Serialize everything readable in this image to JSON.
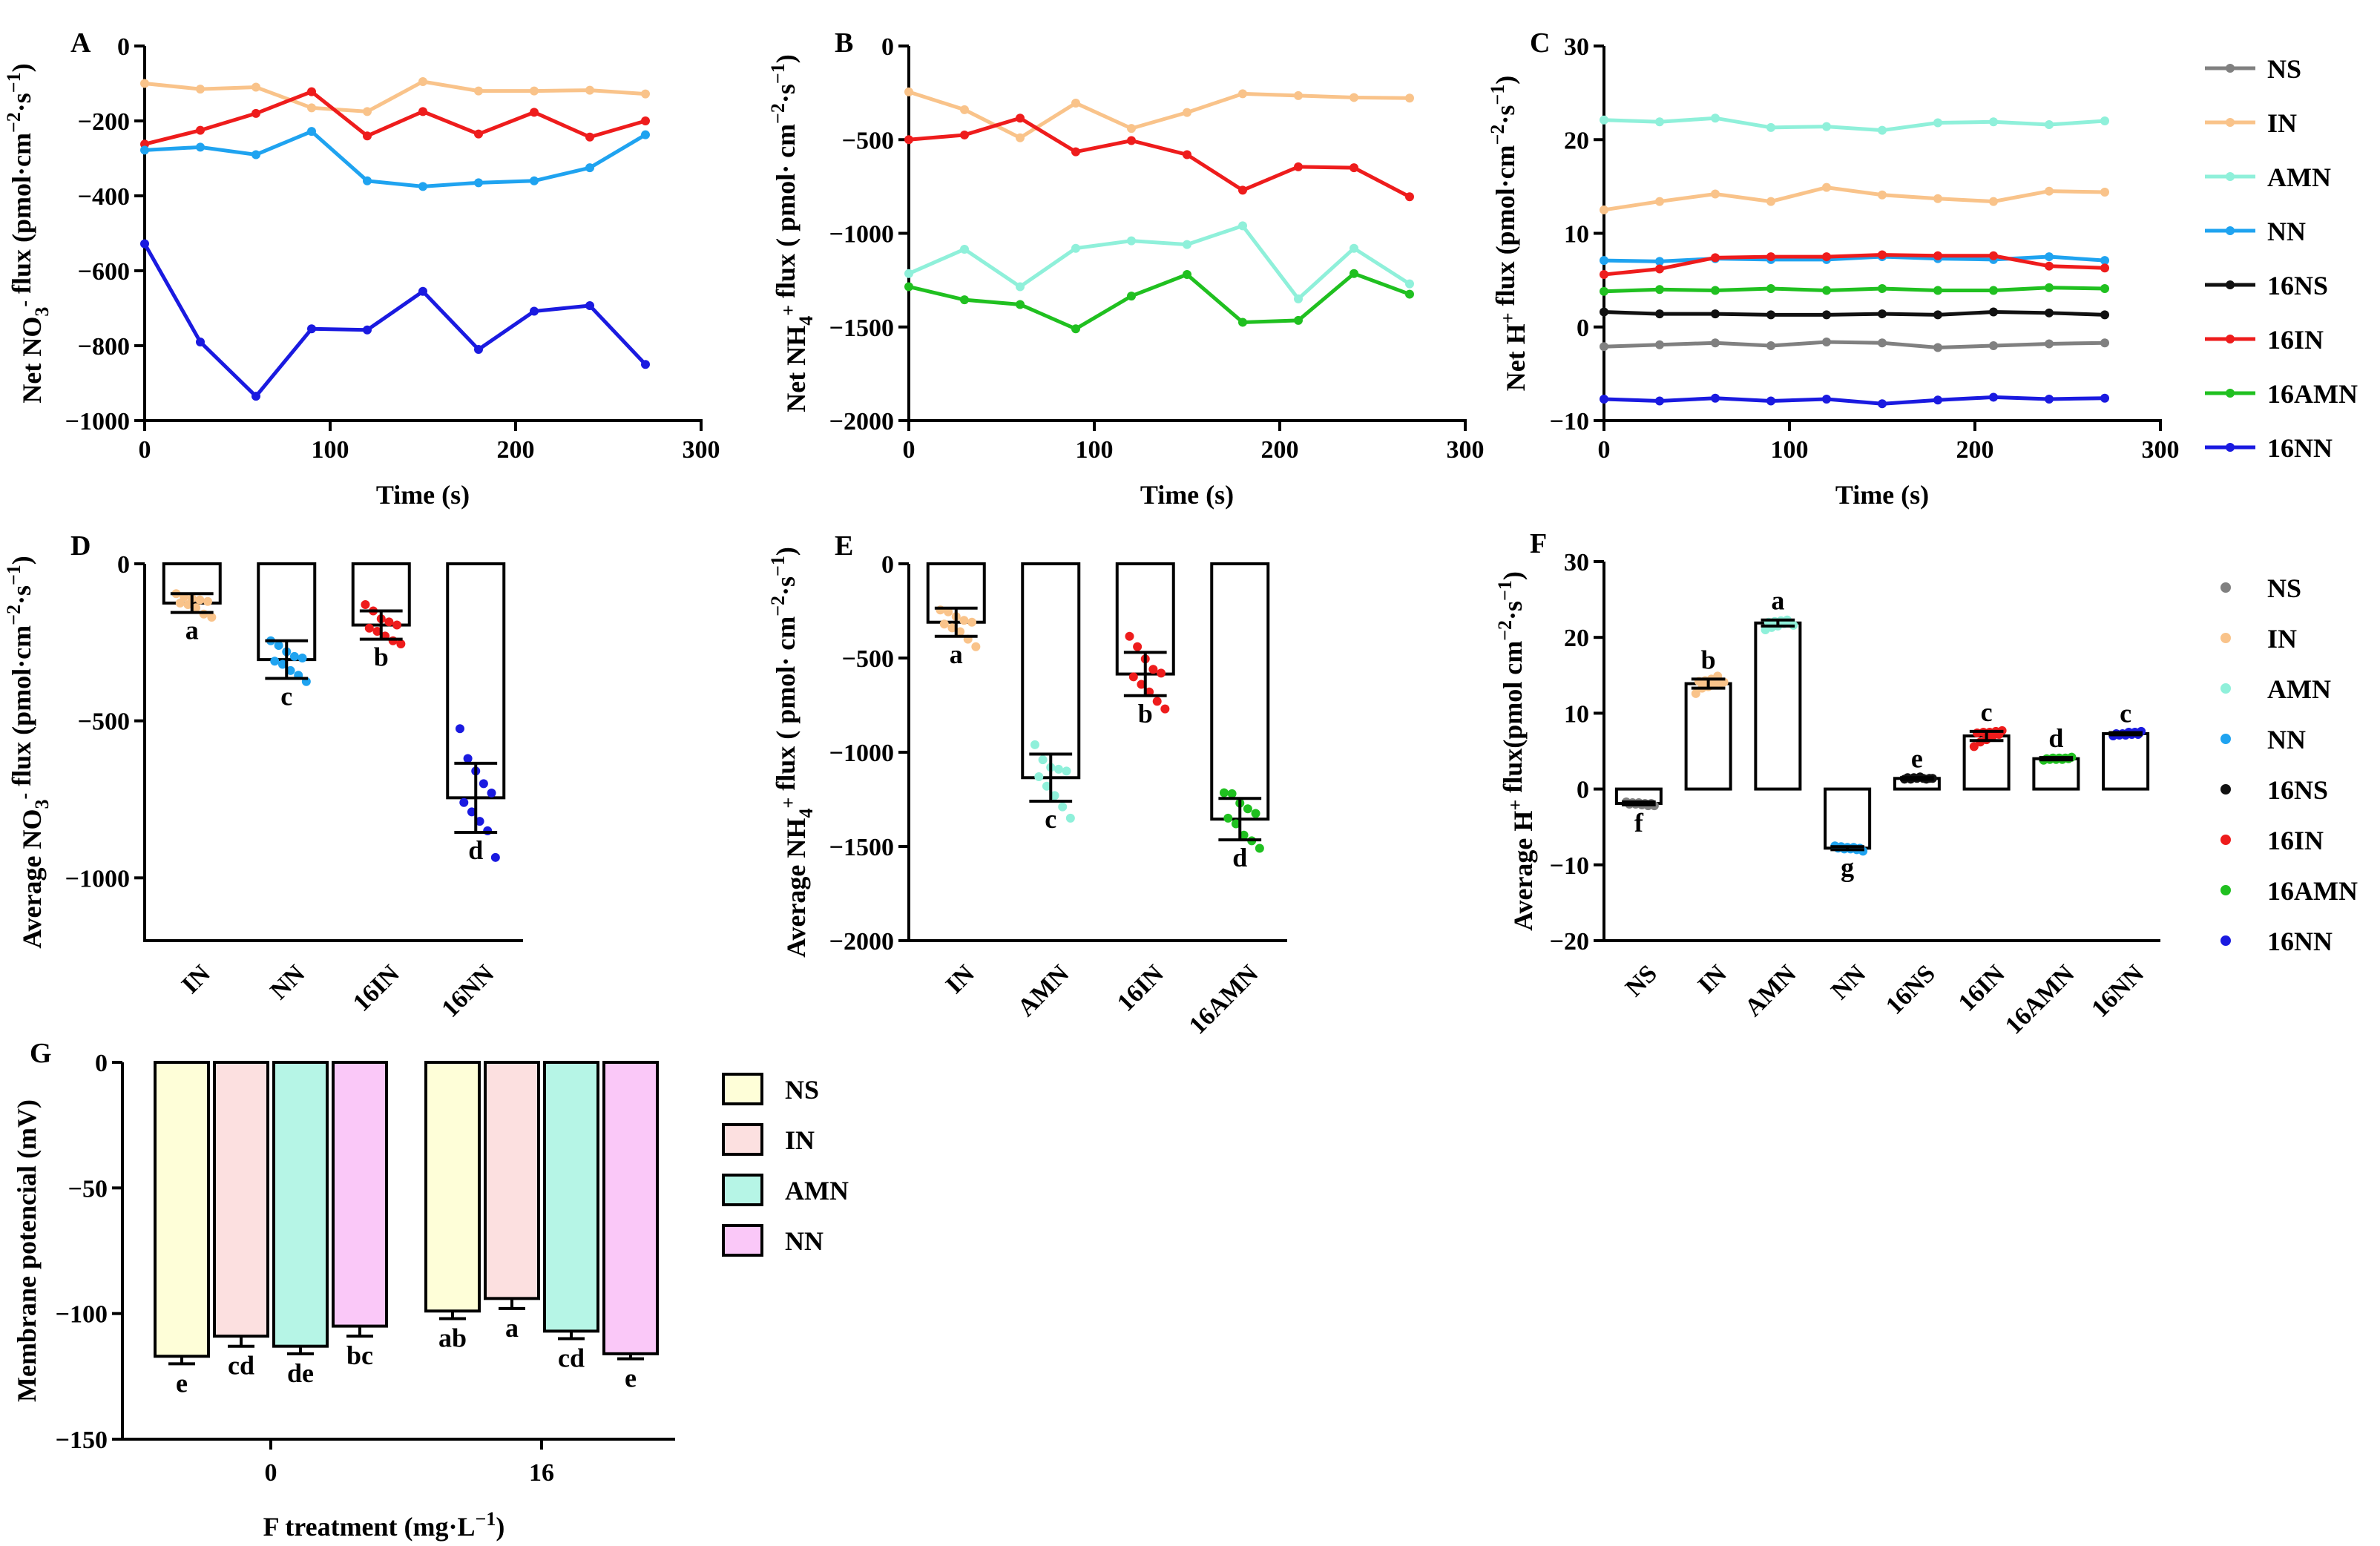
{
  "colors": {
    "NS": "#808080",
    "IN": "#F9C38A",
    "AMN": "#8FF0DA",
    "NN": "#1FA3F0",
    "16NS": "#111111",
    "16IN": "#EE1C1C",
    "16AMN": "#20C020",
    "16NN": "#1A1AE0",
    "G_NS": "#FEFED8",
    "G_IN": "#FCE0E0",
    "G_AMN": "#B6F5E6",
    "G_NN": "#FAC8F8"
  },
  "chart_data": [
    {
      "id": "A",
      "label": "A",
      "type": "line",
      "ylabel": "Net NO3- flux (pmol·cm−2·s−1)",
      "ylabel_parts": {
        "pre": "Net NO",
        "sub": "3",
        "sup1": "-",
        "mid": " flux (pmol·cm",
        "sup2": "−2",
        "mid2": "·s",
        "sup3": "−1",
        "post": ")"
      },
      "xlabel": "Time (s)",
      "xlim": [
        0,
        300
      ],
      "ylim": [
        -1000,
        0
      ],
      "xticks": [
        "0",
        "100",
        "200",
        "300"
      ],
      "yticks": [
        "0",
        "−200",
        "−400",
        "−600",
        "−800",
        "−1000"
      ],
      "x": [
        0,
        30,
        60,
        90,
        120,
        150,
        180,
        210,
        240,
        270
      ],
      "series": [
        {
          "name": "IN",
          "values": [
            -100,
            -115,
            -110,
            -165,
            -175,
            -95,
            -120,
            -120,
            -118,
            -128
          ]
        },
        {
          "name": "16IN",
          "values": [
            -262,
            -225,
            -180,
            -122,
            -240,
            -175,
            -235,
            -177,
            -243,
            -200
          ]
        },
        {
          "name": "NN",
          "values": [
            -278,
            -270,
            -290,
            -228,
            -360,
            -375,
            -365,
            -360,
            -325,
            -237
          ]
        },
        {
          "name": "16NN",
          "values": [
            -528,
            -790,
            -935,
            -755,
            -758,
            -655,
            -810,
            -708,
            -693,
            -850
          ]
        }
      ]
    },
    {
      "id": "B",
      "label": "B",
      "type": "line",
      "ylabel": "Net NH4+ flux ( pmol· cm−2·s−1)",
      "ylabel_parts": {
        "pre": "Net NH",
        "sub": "4",
        "sup1": "+",
        "mid": " flux ( pmol· cm",
        "sup2": "−2",
        "mid2": "·s",
        "sup3": "−1",
        "post": ")"
      },
      "xlabel": "Time (s)",
      "xlim": [
        0,
        300
      ],
      "ylim": [
        -2000,
        0
      ],
      "xticks": [
        "0",
        "100",
        "200",
        "300"
      ],
      "yticks": [
        "0",
        "−500",
        "−1000",
        "−1500",
        "−2000"
      ],
      "x": [
        0,
        30,
        60,
        90,
        120,
        150,
        180,
        210,
        240,
        270
      ],
      "series": [
        {
          "name": "IN",
          "values": [
            -245,
            -340,
            -490,
            -305,
            -440,
            -355,
            -255,
            -265,
            -275,
            -278
          ]
        },
        {
          "name": "16IN",
          "values": [
            -500,
            -475,
            -385,
            -565,
            -505,
            -580,
            -770,
            -645,
            -650,
            -805
          ]
        },
        {
          "name": "AMN",
          "values": [
            -1215,
            -1085,
            -1285,
            -1080,
            -1040,
            -1060,
            -960,
            -1350,
            -1080,
            -1270
          ]
        },
        {
          "name": "16AMN",
          "values": [
            -1285,
            -1355,
            -1380,
            -1510,
            -1335,
            -1220,
            -1475,
            -1465,
            -1215,
            -1325
          ]
        }
      ]
    },
    {
      "id": "C",
      "label": "C",
      "type": "line",
      "ylabel": "Net H+ flux (pmol·cm−2·s−1)",
      "ylabel_parts": {
        "pre": "Net H",
        "sub": "",
        "sup1": "+",
        "mid": " flux (pmol·cm",
        "sup2": "−2",
        "mid2": "·s",
        "sup3": "−1",
        "post": ")"
      },
      "xlabel": "Time (s)",
      "xlim": [
        0,
        300
      ],
      "ylim": [
        -10,
        30
      ],
      "xticks": [
        "0",
        "100",
        "200",
        "300"
      ],
      "yticks": [
        "30",
        "20",
        "10",
        "0",
        "−10"
      ],
      "x": [
        0,
        30,
        60,
        90,
        120,
        150,
        180,
        210,
        240,
        270
      ],
      "series": [
        {
          "name": "AMN",
          "values": [
            22.1,
            21.9,
            22.3,
            21.3,
            21.4,
            21.0,
            21.8,
            21.9,
            21.6,
            22.0
          ]
        },
        {
          "name": "IN",
          "values": [
            12.5,
            13.4,
            14.2,
            13.4,
            14.9,
            14.1,
            13.7,
            13.4,
            14.5,
            14.4
          ]
        },
        {
          "name": "NN",
          "values": [
            7.1,
            7.0,
            7.3,
            7.2,
            7.2,
            7.5,
            7.3,
            7.2,
            7.5,
            7.1
          ]
        },
        {
          "name": "16IN",
          "values": [
            5.6,
            6.2,
            7.4,
            7.5,
            7.5,
            7.7,
            7.6,
            7.6,
            6.5,
            6.3
          ]
        },
        {
          "name": "16AMN",
          "values": [
            3.8,
            4.0,
            3.9,
            4.1,
            3.9,
            4.1,
            3.9,
            3.9,
            4.2,
            4.1
          ]
        },
        {
          "name": "16NS",
          "values": [
            1.6,
            1.4,
            1.4,
            1.3,
            1.3,
            1.4,
            1.3,
            1.6,
            1.5,
            1.3
          ]
        },
        {
          "name": "NS",
          "values": [
            -2.1,
            -1.9,
            -1.7,
            -2.0,
            -1.6,
            -1.7,
            -2.2,
            -2.0,
            -1.8,
            -1.7
          ]
        },
        {
          "name": "16NN",
          "values": [
            -7.7,
            -7.9,
            -7.6,
            -7.9,
            -7.7,
            -8.2,
            -7.8,
            -7.5,
            -7.7,
            -7.6
          ]
        }
      ]
    },
    {
      "id": "D",
      "label": "D",
      "type": "bar",
      "ylabel": "Average NO3- flux (pmol·cm−2·s−1)",
      "ylabel_parts": {
        "pre": "Average NO",
        "sub": "3",
        "sup1": "-",
        "mid": " flux (pmol·cm",
        "sup2": "−2",
        "mid2": "·s",
        "sup3": "−1",
        "post": ")"
      },
      "ylim": [
        -1200,
        0
      ],
      "yticks": [
        "0",
        "−500",
        "−1000"
      ],
      "categories": [
        "IN",
        "NN",
        "16IN",
        "16NN"
      ],
      "values": [
        -125,
        -305,
        -195,
        -745
      ],
      "errors": [
        30,
        60,
        45,
        110
      ],
      "letters": [
        "a",
        "c",
        "b",
        "d"
      ],
      "points": [
        [
          -95,
          -105,
          -110,
          -115,
          -120,
          -125,
          -130,
          -140,
          -160,
          -170
        ],
        [
          -245,
          -260,
          -280,
          -295,
          -300,
          -310,
          -320,
          -340,
          -355,
          -375
        ],
        [
          -130,
          -150,
          -175,
          -185,
          -195,
          -205,
          -215,
          -230,
          -245,
          -255
        ],
        [
          -525,
          -620,
          -660,
          -700,
          -730,
          -760,
          -790,
          -820,
          -850,
          -935
        ]
      ]
    },
    {
      "id": "E",
      "label": "E",
      "type": "bar",
      "ylabel": "Average NH4+ flux ( pmol· cm−2·s−1)",
      "ylabel_parts": {
        "pre": "Average NH",
        "sub": "4",
        "sup1": "+",
        "mid": " flux ( pmol· cm",
        "sup2": "−2",
        "mid2": "·s",
        "sup3": "−1",
        "post": ")"
      },
      "ylim": [
        -2000,
        0
      ],
      "yticks": [
        "0",
        "−500",
        "−1000",
        "−1500",
        "−2000"
      ],
      "categories": [
        "IN",
        "AMN",
        "16IN",
        "16AMN"
      ],
      "values": [
        -310,
        -1135,
        -585,
        -1355
      ],
      "errors": [
        75,
        125,
        115,
        110
      ],
      "letters": [
        "a",
        "c",
        "b",
        "d"
      ],
      "points": [
        [
          -245,
          -255,
          -280,
          -300,
          -310,
          -320,
          -340,
          -360,
          -400,
          -440
        ],
        [
          -960,
          -1040,
          -1080,
          -1090,
          -1100,
          -1130,
          -1180,
          -1230,
          -1290,
          -1350
        ],
        [
          -385,
          -440,
          -505,
          -560,
          -580,
          -600,
          -640,
          -680,
          -730,
          -770
        ],
        [
          -1215,
          -1220,
          -1270,
          -1300,
          -1325,
          -1350,
          -1380,
          -1440,
          -1470,
          -1510
        ]
      ]
    },
    {
      "id": "F",
      "label": "F",
      "type": "bar",
      "ylabel": "Average H+ flux(pmol cm−2·s−1)",
      "ylabel_parts": {
        "pre": "Average H",
        "sub": "",
        "sup1": "+",
        "mid": " flux(pmol cm",
        "sup2": "−2",
        "mid2": "·s",
        "sup3": "−1",
        "post": ")"
      },
      "ylim": [
        -20,
        30
      ],
      "yticks": [
        "30",
        "20",
        "10",
        "0",
        "−10",
        "−20"
      ],
      "categories": [
        "NS",
        "IN",
        "AMN",
        "NN",
        "16NS",
        "16IN",
        "16AMN",
        "16NN"
      ],
      "values": [
        -1.9,
        13.9,
        21.9,
        -7.8,
        1.4,
        7.0,
        4.0,
        7.3
      ],
      "errors": [
        0.2,
        0.6,
        0.4,
        0.2,
        0.1,
        0.6,
        0.15,
        0.15
      ],
      "letters": [
        "f",
        "b",
        "a",
        "g",
        "e",
        "c",
        "d",
        "c"
      ],
      "points": [
        [
          -1.7,
          -1.8,
          -1.8,
          -1.9,
          -1.9,
          -2.0,
          -2.0,
          -2.1,
          -2.2,
          -2.2
        ],
        [
          12.6,
          13.3,
          13.5,
          13.8,
          14.0,
          14.2,
          14.3,
          14.5,
          14.9,
          14.1
        ],
        [
          21.0,
          21.3,
          21.5,
          21.8,
          21.9,
          22.0,
          22.1,
          22.2,
          22.3,
          21.6
        ],
        [
          -7.5,
          -7.6,
          -7.7,
          -7.7,
          -7.8,
          -7.8,
          -7.9,
          -7.9,
          -8.0,
          -8.2
        ],
        [
          1.3,
          1.3,
          1.4,
          1.4,
          1.4,
          1.5,
          1.5,
          1.6,
          1.3,
          1.4
        ],
        [
          5.6,
          6.2,
          6.5,
          7.0,
          7.2,
          7.4,
          7.5,
          7.5,
          7.6,
          7.7
        ],
        [
          3.8,
          3.9,
          3.9,
          3.9,
          4.0,
          4.0,
          4.1,
          4.1,
          4.1,
          4.2
        ],
        [
          7.0,
          7.1,
          7.1,
          7.2,
          7.2,
          7.3,
          7.3,
          7.5,
          7.5,
          7.6
        ]
      ]
    },
    {
      "id": "G",
      "label": "G",
      "type": "bar",
      "ylabel": "Membrane potencial (mV)",
      "xlabel": "F treatment (mg·L−1)",
      "xlabel_parts": {
        "pre": "F treatment (mg·L",
        "sup": "−1",
        "post": ")"
      },
      "ylim": [
        -150,
        0
      ],
      "yticks": [
        "0",
        "−50",
        "−100",
        "−150"
      ],
      "groups": [
        "0",
        "16"
      ],
      "series": [
        {
          "name": "NS",
          "values": [
            -117,
            -99
          ],
          "errors": [
            3,
            3
          ],
          "letters": [
            "e",
            "ab"
          ]
        },
        {
          "name": "IN",
          "values": [
            -109,
            -94
          ],
          "errors": [
            4,
            4
          ],
          "letters": [
            "cd",
            "a"
          ]
        },
        {
          "name": "AMN",
          "values": [
            -113,
            -107
          ],
          "errors": [
            3,
            3
          ],
          "letters": [
            "de",
            "cd"
          ]
        },
        {
          "name": "NN",
          "values": [
            -105,
            -116
          ],
          "errors": [
            4,
            2
          ],
          "letters": [
            "bc",
            "e"
          ]
        }
      ]
    }
  ],
  "legend_lines": [
    "NS",
    "IN",
    "AMN",
    "NN",
    "16NS",
    "16IN",
    "16AMN",
    "16NN"
  ],
  "legend_points": [
    "NS",
    "IN",
    "AMN",
    "NN",
    "16NS",
    "16IN",
    "16AMN",
    "16NN"
  ],
  "legend_bars": [
    "NS",
    "IN",
    "AMN",
    "NN"
  ]
}
